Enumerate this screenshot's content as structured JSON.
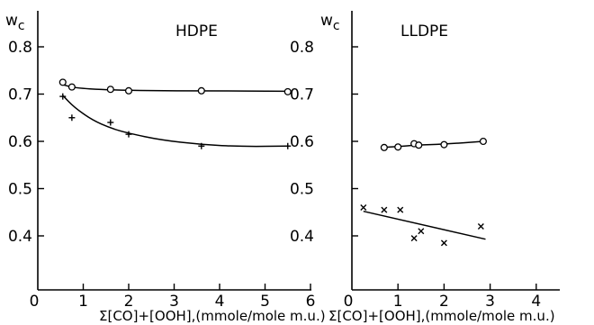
{
  "chart_data": [
    {
      "type": "line",
      "title": "HDPE",
      "ylabel": "w",
      "ylabel_sub": "c",
      "xlabel": "Σ[CO]+[OOH],(mmole/mole m.u.)",
      "xlim": [
        0,
        6
      ],
      "ylim": [
        0.3,
        0.9
      ],
      "xticks": [
        "0",
        "1",
        "2",
        "3",
        "4",
        "5",
        "6"
      ],
      "yticks": [
        "0.4",
        "0.5",
        "0.6",
        "0.7",
        "0.8"
      ],
      "series": [
        {
          "marker": "circle",
          "x": [
            0.55,
            0.75,
            1.6,
            2.0,
            3.6,
            5.5
          ],
          "y": [
            0.725,
            0.715,
            0.71,
            0.707,
            0.707,
            0.705
          ],
          "curve": [
            [
              0.55,
              0.72
            ],
            [
              0.8,
              0.713
            ],
            [
              1.5,
              0.709
            ],
            [
              2.5,
              0.707
            ],
            [
              3.6,
              0.707
            ],
            [
              5.5,
              0.706
            ]
          ]
        },
        {
          "marker": "plus",
          "x": [
            0.55,
            0.75,
            1.6,
            2.0,
            3.6,
            5.5
          ],
          "y": [
            0.695,
            0.65,
            0.64,
            0.615,
            0.59,
            0.59
          ],
          "curve": [
            [
              0.55,
              0.697
            ],
            [
              0.8,
              0.672
            ],
            [
              1.2,
              0.645
            ],
            [
              1.6,
              0.628
            ],
            [
              2.0,
              0.617
            ],
            [
              2.7,
              0.603
            ],
            [
              3.6,
              0.593
            ],
            [
              4.5,
              0.589
            ],
            [
              5.5,
              0.59
            ]
          ]
        }
      ]
    },
    {
      "type": "line",
      "title": "LLDPE",
      "ylabel": "w",
      "ylabel_sub": "c",
      "xlabel": "Σ[CO]+[OOH],(mmole/mole m.u.)",
      "xlim": [
        0,
        4.5
      ],
      "ylim": [
        0.3,
        0.9
      ],
      "xticks": [
        "0",
        "1",
        "2",
        "3",
        "4"
      ],
      "yticks": [
        "0.4",
        "0.5",
        "0.6",
        "0.7",
        "0.8"
      ],
      "series": [
        {
          "marker": "circle",
          "x": [
            0.7,
            1.0,
            1.35,
            1.45,
            2.0,
            2.85
          ],
          "y": [
            0.587,
            0.588,
            0.595,
            0.592,
            0.593,
            0.6
          ],
          "curve": [
            [
              0.65,
              0.587
            ],
            [
              1.0,
              0.589
            ],
            [
              1.4,
              0.592
            ],
            [
              2.0,
              0.594
            ],
            [
              2.85,
              0.6
            ]
          ]
        },
        {
          "marker": "cross",
          "x": [
            0.25,
            0.7,
            1.05,
            1.35,
            1.5,
            2.0,
            2.8
          ],
          "y": [
            0.46,
            0.455,
            0.455,
            0.395,
            0.41,
            0.385,
            0.42
          ],
          "curve": [
            [
              0.25,
              0.452
            ],
            [
              2.9,
              0.393
            ]
          ]
        }
      ]
    }
  ]
}
